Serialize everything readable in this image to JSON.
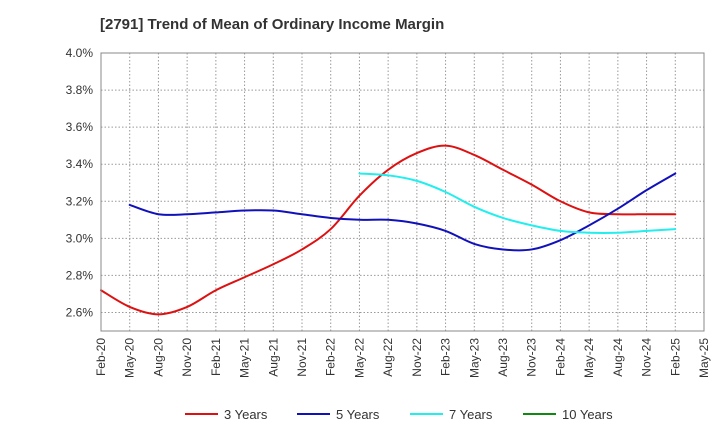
{
  "chart_data": {
    "type": "line",
    "title": "[2791]  Trend of Mean of Ordinary Income Margin",
    "xlabel": "",
    "ylabel": "",
    "ylim": [
      2.5,
      4.0
    ],
    "y_ticks": [
      "2.6%",
      "2.8%",
      "3.0%",
      "3.2%",
      "3.4%",
      "3.6%",
      "3.8%",
      "4.0%"
    ],
    "y_tick_values": [
      2.6,
      2.8,
      3.0,
      3.2,
      3.4,
      3.6,
      3.8,
      4.0
    ],
    "x_ticks": [
      "Feb-20",
      "May-20",
      "Aug-20",
      "Nov-20",
      "Feb-21",
      "May-21",
      "Aug-21",
      "Nov-21",
      "Feb-22",
      "May-22",
      "Aug-22",
      "Nov-22",
      "Feb-23",
      "May-23",
      "Aug-23",
      "Nov-23",
      "Feb-24",
      "May-24",
      "Aug-24",
      "Nov-24",
      "Feb-25",
      "May-25"
    ],
    "grid": true,
    "legend_position": "bottom",
    "series": [
      {
        "name": "3 Years",
        "color": "#dd1111",
        "values": [
          2.72,
          2.63,
          2.59,
          2.63,
          2.72,
          2.79,
          2.86,
          2.94,
          3.05,
          3.23,
          3.37,
          3.46,
          3.5,
          3.45,
          3.37,
          3.29,
          3.2,
          3.14,
          3.13,
          3.13,
          3.13,
          null
        ]
      },
      {
        "name": "5 Years",
        "color": "#1111bb",
        "values": [
          null,
          3.18,
          3.13,
          3.13,
          3.14,
          3.15,
          3.15,
          3.13,
          3.11,
          3.1,
          3.1,
          3.08,
          3.04,
          2.97,
          2.94,
          2.94,
          2.99,
          3.07,
          3.16,
          3.26,
          3.35,
          null
        ]
      },
      {
        "name": "7 Years",
        "color": "#22eeee",
        "values": [
          null,
          null,
          null,
          null,
          null,
          null,
          null,
          null,
          null,
          3.35,
          3.34,
          3.31,
          3.25,
          3.17,
          3.11,
          3.07,
          3.04,
          3.03,
          3.03,
          3.04,
          3.05,
          null
        ]
      },
      {
        "name": "10 Years",
        "color": "#118811",
        "values": [
          null,
          null,
          null,
          null,
          null,
          null,
          null,
          null,
          null,
          null,
          null,
          null,
          null,
          null,
          null,
          null,
          null,
          null,
          null,
          null,
          null,
          null
        ]
      }
    ]
  }
}
